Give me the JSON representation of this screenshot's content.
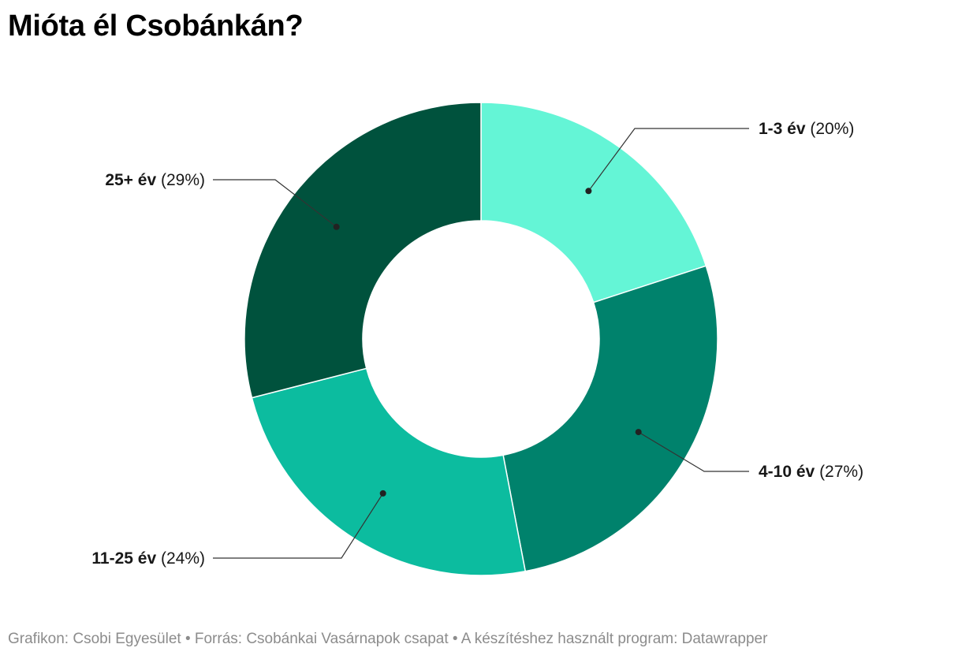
{
  "title": "Mióta él Csobánkán?",
  "footer": "Grafikon: Csobi Egyesület • Forrás: Csobánkai Vasárnapok csapat • A készítéshez használt program: Datawrapper",
  "chart_data": {
    "type": "pie",
    "title": "Mióta él Csobánkán?",
    "donut": true,
    "unit": "%",
    "slices": [
      {
        "label": "1-3 év",
        "value": 20,
        "display": "(20%)",
        "color": "#64f5d6"
      },
      {
        "label": "4-10 év",
        "value": 27,
        "display": "(27%)",
        "color": "#00826c"
      },
      {
        "label": "11-25 év",
        "value": 24,
        "display": "(24%)",
        "color": "#0cbc9f"
      },
      {
        "label": "25+ év",
        "value": 29,
        "display": "(29%)",
        "color": "#00523d"
      }
    ]
  }
}
